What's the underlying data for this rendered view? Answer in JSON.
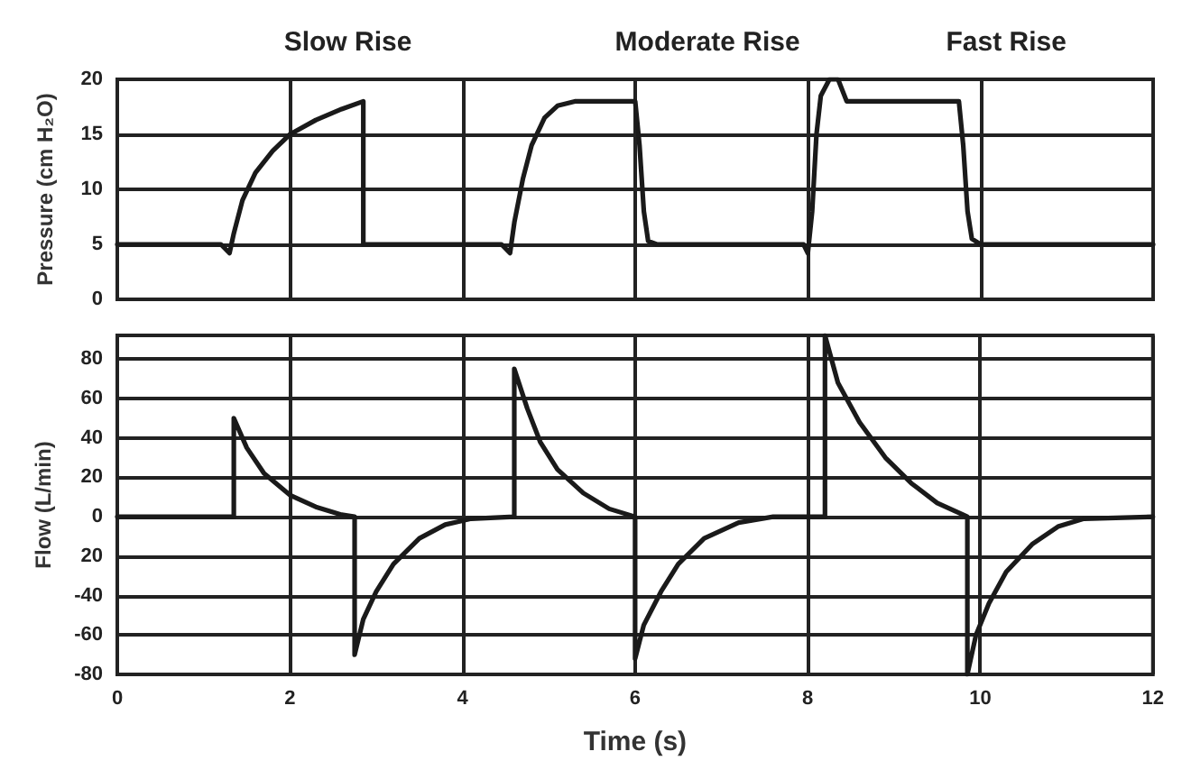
{
  "chart_data": [
    {
      "type": "line",
      "ylabel": "Pressure (cm H₂O)",
      "annotations": [
        "Slow Rise",
        "Moderate Rise",
        "Fast Rise"
      ],
      "xlim": [
        0,
        12
      ],
      "xticks": [
        0,
        2,
        4,
        6,
        8,
        10,
        12
      ],
      "ylim": [
        0,
        20
      ],
      "yticks": [
        0,
        5,
        10,
        15,
        20
      ],
      "grid": true,
      "tick_labels": "y",
      "marker": "none",
      "line_style": "solid",
      "series": [
        {
          "color": "#1a1a1a",
          "x": [
            0,
            1.2,
            1.3,
            1.35,
            1.45,
            1.6,
            1.8,
            2.0,
            2.3,
            2.6,
            2.85,
            2.85,
            4.45,
            4.55,
            4.6,
            4.7,
            4.8,
            4.95,
            5.1,
            5.3,
            6.0,
            6.05,
            6.1,
            6.15,
            6.25,
            7.95,
            8.0,
            8.05,
            8.1,
            8.15,
            8.25,
            8.35,
            8.45,
            9.75,
            9.8,
            9.85,
            9.9,
            10.0,
            12
          ],
          "values": [
            5,
            5,
            4.2,
            6,
            9,
            11.5,
            13.5,
            15,
            16.3,
            17.3,
            18,
            5,
            5,
            4.2,
            7,
            11,
            14,
            16.5,
            17.6,
            18,
            18,
            14,
            8,
            5.3,
            5,
            5,
            4.2,
            8,
            15,
            18.5,
            20,
            20,
            18,
            18,
            14,
            8,
            5.5,
            5,
            5
          ]
        }
      ]
    },
    {
      "type": "line",
      "xlabel": "Time (s)",
      "ylabel": "Flow (L/min)",
      "xlim": [
        0,
        12
      ],
      "xticks": [
        0,
        2,
        4,
        6,
        8,
        10,
        12
      ],
      "ylim": [
        -80,
        92
      ],
      "yticks": [
        80,
        60,
        40,
        20,
        0,
        {
          "value": -20,
          "label": "20"
        },
        -40,
        -60,
        -80
      ],
      "grid": true,
      "marker": "none",
      "line_style": "solid",
      "series": [
        {
          "color": "#1a1a1a",
          "x": [
            0,
            1.35,
            1.35,
            1.5,
            1.7,
            2.0,
            2.3,
            2.6,
            2.75,
            2.75,
            2.85,
            3.0,
            3.2,
            3.5,
            3.8,
            4.1,
            4.6,
            4.6,
            4.75,
            4.9,
            5.1,
            5.4,
            5.7,
            6.0,
            6.0,
            6.1,
            6.3,
            6.5,
            6.8,
            7.2,
            7.6,
            8.2,
            8.2,
            8.35,
            8.6,
            8.9,
            9.2,
            9.5,
            9.8,
            9.85,
            9.85,
            9.95,
            10.1,
            10.3,
            10.6,
            10.9,
            11.2,
            12
          ],
          "values": [
            0,
            0,
            50,
            35,
            22,
            11,
            5,
            1,
            0,
            -70,
            -52,
            -38,
            -24,
            -11,
            -4,
            -1,
            0,
            75,
            55,
            38,
            24,
            12,
            4,
            0,
            -72,
            -55,
            -38,
            -24,
            -11,
            -3,
            0,
            0,
            92,
            68,
            48,
            30,
            17,
            7,
            1,
            0,
            -80,
            -60,
            -44,
            -28,
            -14,
            -5,
            -1,
            0
          ]
        }
      ]
    }
  ]
}
